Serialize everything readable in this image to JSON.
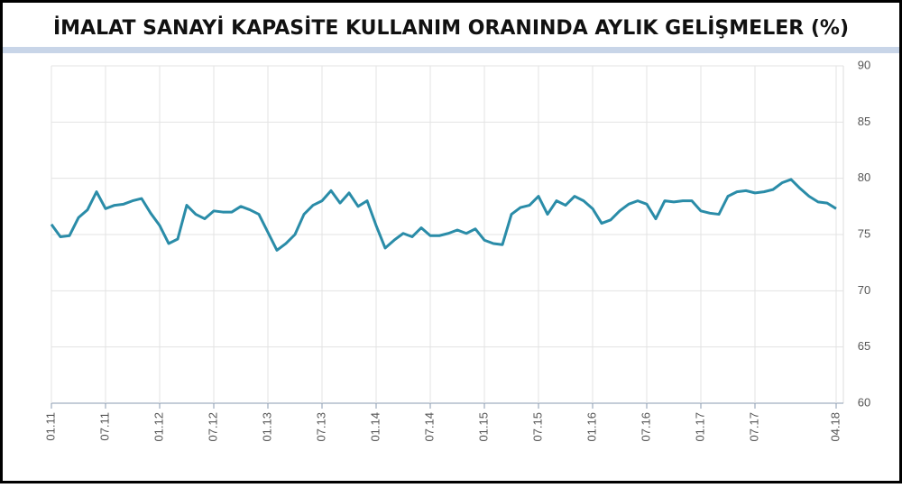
{
  "chart_data": {
    "type": "line",
    "title": "İMALAT SANAYİ KAPASİTE KULLANIM ORANINDA AYLIK GELİŞMELER (%)",
    "categories": [
      "01.11",
      null,
      null,
      null,
      null,
      null,
      "07.11",
      null,
      null,
      null,
      null,
      null,
      "01.12",
      null,
      null,
      null,
      null,
      null,
      "07.12",
      null,
      null,
      null,
      null,
      null,
      "01.13",
      null,
      null,
      null,
      null,
      null,
      "07.13",
      null,
      null,
      null,
      null,
      null,
      "01.14",
      null,
      null,
      null,
      null,
      null,
      "07.14",
      null,
      null,
      null,
      null,
      null,
      "01.15",
      null,
      null,
      null,
      null,
      null,
      "07.15",
      null,
      null,
      null,
      null,
      null,
      "01.16",
      null,
      null,
      null,
      null,
      null,
      "07.16",
      null,
      null,
      null,
      null,
      null,
      "01.17",
      null,
      null,
      null,
      null,
      null,
      "07.17",
      null,
      null,
      null,
      null,
      null,
      null,
      null,
      null,
      "04.18"
    ],
    "values": [
      75.9,
      74.8,
      74.9,
      76.5,
      77.2,
      78.8,
      77.3,
      77.6,
      77.7,
      78.0,
      78.2,
      76.9,
      75.8,
      74.2,
      74.6,
      77.6,
      76.8,
      76.4,
      77.1,
      77.0,
      77.0,
      77.5,
      77.2,
      76.8,
      75.2,
      73.6,
      74.2,
      75.0,
      76.8,
      77.6,
      78.0,
      78.9,
      77.8,
      78.7,
      77.5,
      78.0,
      75.8,
      73.8,
      74.5,
      75.1,
      74.8,
      75.6,
      74.9,
      74.9,
      75.1,
      75.4,
      75.1,
      75.5,
      74.5,
      74.2,
      74.1,
      76.8,
      77.4,
      77.6,
      78.4,
      76.8,
      78.0,
      77.6,
      78.4,
      78.0,
      77.3,
      76.0,
      76.3,
      77.1,
      77.7,
      78.0,
      77.7,
      76.4,
      78.0,
      77.9,
      78.0,
      78.0,
      77.1,
      76.9,
      76.8,
      78.4,
      78.8,
      78.9,
      78.7,
      78.8,
      79.0,
      79.6,
      79.9,
      79.1,
      78.4,
      77.9,
      77.8,
      77.3
    ],
    "color": "#2a8ca8",
    "ylim": [
      60,
      90
    ],
    "yticks": [
      60,
      65,
      70,
      75,
      80,
      85,
      90
    ],
    "grid": true
  }
}
